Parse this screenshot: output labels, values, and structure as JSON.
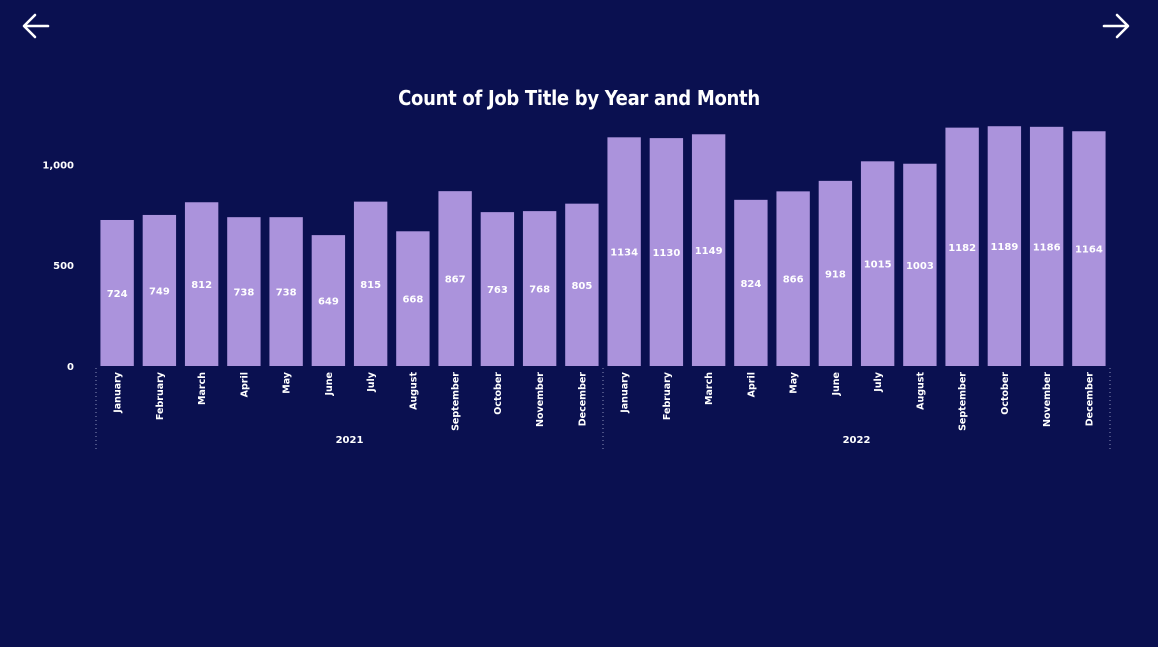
{
  "nav": {
    "back_icon": "arrow-left-icon",
    "forward_icon": "arrow-right-icon"
  },
  "colors": {
    "background": "#0a1050",
    "bar": "#ab93dc",
    "text": "#ffffff"
  },
  "chart_data": {
    "type": "bar",
    "title": "Count of Job Title by Year and Month",
    "xlabel": "",
    "ylabel": "",
    "ylim": [
      0,
      1200
    ],
    "y_ticks": [
      {
        "value": 0,
        "label": "0"
      },
      {
        "value": 500,
        "label": "500"
      },
      {
        "value": 1000,
        "label": "1,000"
      }
    ],
    "grid": false,
    "groups": [
      {
        "year": "2021",
        "categories": [
          "January",
          "February",
          "March",
          "April",
          "May",
          "June",
          "July",
          "August",
          "September",
          "October",
          "November",
          "December"
        ],
        "values": [
          724,
          749,
          812,
          738,
          738,
          649,
          815,
          668,
          867,
          763,
          768,
          805
        ]
      },
      {
        "year": "2022",
        "categories": [
          "January",
          "February",
          "March",
          "April",
          "May",
          "June",
          "July",
          "August",
          "September",
          "October",
          "November",
          "December"
        ],
        "values": [
          1134,
          1130,
          1149,
          824,
          866,
          918,
          1015,
          1003,
          1182,
          1189,
          1186,
          1164
        ]
      }
    ]
  }
}
